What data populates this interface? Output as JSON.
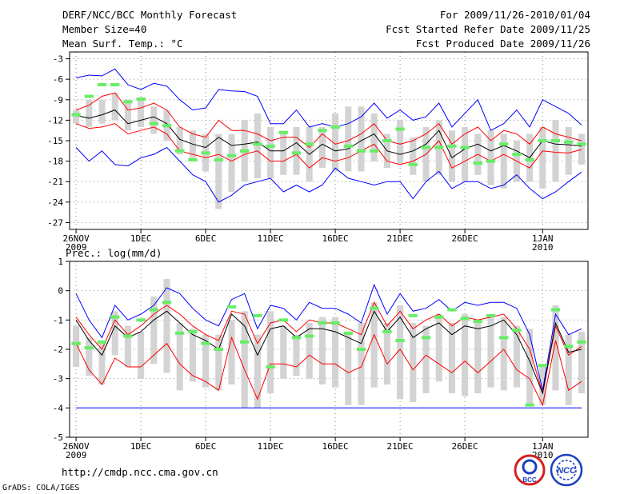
{
  "header": {
    "title": "DERF/NCC/BCC Monthly Forecast",
    "member_size": "Member Size=40",
    "variable": "Mean Surf. Temp.: °C",
    "period": "For 2009/11/26-2010/01/04",
    "started": "Fcst Started Refer Date 2009/11/25",
    "produced": "Fcst Produced Date 2009/11/26"
  },
  "footer": {
    "url": "http://cmdp.ncc.cma.gov.cn",
    "grads": "GrADS: COLA/IGES",
    "logo_bcc": "BCC",
    "logo_ncc": "NCC"
  },
  "colors": {
    "envelope": "#0000ff",
    "spread": "#ff0000",
    "mean": "#000000",
    "box": "#d3d3d3",
    "obs": "#66ee66"
  },
  "chart_data": [
    {
      "type": "box-line",
      "title": "Mean Surf. Temp.: °C",
      "ylim": [
        -28,
        -2
      ],
      "yticks": [
        -27,
        -24,
        -21,
        -18,
        -15,
        -12,
        -9,
        -6,
        -3
      ],
      "xlim": [
        0.5,
        40.5
      ],
      "xticks": [
        {
          "x": 1,
          "label": "26NOV",
          "sub": "2009"
        },
        {
          "x": 6,
          "label": "1DEC"
        },
        {
          "x": 11,
          "label": "6DEC"
        },
        {
          "x": 16,
          "label": "11DEC"
        },
        {
          "x": 21,
          "label": "16DEC"
        },
        {
          "x": 26,
          "label": "21DEC"
        },
        {
          "x": 31,
          "label": "26DEC"
        },
        {
          "x": 37,
          "label": "1JAN",
          "sub": "2010"
        }
      ],
      "x": [
        1,
        2,
        3,
        4,
        5,
        6,
        7,
        8,
        9,
        10,
        11,
        12,
        13,
        14,
        15,
        16,
        17,
        18,
        19,
        20,
        21,
        22,
        23,
        24,
        25,
        26,
        27,
        28,
        29,
        30,
        31,
        32,
        33,
        34,
        35,
        36,
        37,
        38,
        39,
        40
      ],
      "series": [
        {
          "name": "max",
          "values": [
            -5.8,
            -5.4,
            -5.5,
            -4.5,
            -6.8,
            -7.5,
            -6.6,
            -7,
            -9,
            -10.5,
            -10.2,
            -7.5,
            -7.7,
            -7.8,
            -8.5,
            -12.5,
            -12.5,
            -10.5,
            -13,
            -12.5,
            -13,
            -12.5,
            -11.5,
            -9.5,
            -11.7,
            -10.5,
            -12,
            -11.5,
            -9.5,
            -13,
            -11,
            -9,
            -13.5,
            -12.5,
            -10.5,
            -13,
            -9,
            -10,
            -11,
            -12.7
          ]
        },
        {
          "name": "upper",
          "values": [
            -10.5,
            -9.8,
            -8.5,
            -8,
            -10.5,
            -10.2,
            -9.5,
            -10.5,
            -13,
            -14,
            -14.5,
            -12,
            -13.5,
            -13.5,
            -14,
            -15,
            -14.5,
            -14.5,
            -16,
            -14,
            -15.5,
            -15,
            -14,
            -12.5,
            -15,
            -15.5,
            -15,
            -14,
            -12.5,
            -15.5,
            -14,
            -13,
            -15,
            -13.5,
            -14,
            -15.5,
            -13,
            -14,
            -14.5,
            -15
          ]
        },
        {
          "name": "mean",
          "values": [
            -11.3,
            -11.7,
            -11.2,
            -10.5,
            -12.5,
            -12,
            -11.5,
            -12.5,
            -14.8,
            -15.5,
            -16,
            -14.5,
            -15.7,
            -15.5,
            -15.2,
            -16.5,
            -16.5,
            -15.3,
            -17,
            -15.5,
            -16.5,
            -16.2,
            -15,
            -14,
            -16.5,
            -17,
            -16.5,
            -15.5,
            -13.5,
            -17.5,
            -16.2,
            -15.5,
            -16.5,
            -15.7,
            -16.5,
            -17.5,
            -15,
            -15.5,
            -15.6,
            -15.8
          ]
        },
        {
          "name": "lower",
          "values": [
            -12.5,
            -13.2,
            -13,
            -12.5,
            -14,
            -13.5,
            -13,
            -14,
            -16.5,
            -17,
            -17.5,
            -17,
            -18,
            -17,
            -16.5,
            -18,
            -18,
            -17,
            -19,
            -17.5,
            -18,
            -17.5,
            -16.5,
            -15.5,
            -18,
            -18.5,
            -18,
            -17,
            -15,
            -19,
            -18,
            -17,
            -18,
            -17,
            -18,
            -19,
            -16.5,
            -16.7,
            -16.8,
            -16.3
          ]
        },
        {
          "name": "min",
          "values": [
            -16,
            -18,
            -16.5,
            -18.5,
            -18.7,
            -17.5,
            -17,
            -16,
            -18,
            -20,
            -21,
            -24,
            -23,
            -21.5,
            -21,
            -20.5,
            -22.5,
            -21.5,
            -22.5,
            -21.5,
            -19,
            -20.5,
            -21,
            -21.5,
            -21,
            -21,
            -23.5,
            -21,
            -19.5,
            -22,
            -21,
            -21,
            -22,
            -21.5,
            -20,
            -22,
            -23.5,
            -22.5,
            -21,
            -19.6
          ]
        }
      ],
      "boxes": [
        [
          -12.5,
          -10.5
        ],
        [
          -13,
          -9
        ],
        [
          -12.5,
          -9
        ],
        [
          -12,
          -8
        ],
        [
          -13.5,
          -9
        ],
        [
          -13,
          -9
        ],
        [
          -14,
          -10
        ],
        [
          -15,
          -10.5
        ],
        [
          -17,
          -13
        ],
        [
          -18,
          -13.5
        ],
        [
          -19.5,
          -14
        ],
        [
          -25,
          -14
        ],
        [
          -22.5,
          -14
        ],
        [
          -21,
          -12
        ],
        [
          -20.5,
          -11
        ],
        [
          -20.5,
          -13
        ],
        [
          -20,
          -14
        ],
        [
          -20,
          -13
        ],
        [
          -21,
          -13
        ],
        [
          -19,
          -13
        ],
        [
          -19.5,
          -11
        ],
        [
          -19.5,
          -10
        ],
        [
          -19.5,
          -10
        ],
        [
          -18,
          -11
        ],
        [
          -19,
          -14
        ],
        [
          -18.5,
          -12
        ],
        [
          -20,
          -14.5
        ],
        [
          -21,
          -13
        ],
        [
          -20,
          -12
        ],
        [
          -21,
          -13.5
        ],
        [
          -21,
          -13
        ],
        [
          -20,
          -14
        ],
        [
          -21.5,
          -13.5
        ],
        [
          -22,
          -14
        ],
        [
          -21,
          -15
        ],
        [
          -21,
          -14
        ],
        [
          -22,
          -13
        ],
        [
          -21,
          -12
        ],
        [
          -20,
          -13
        ],
        [
          -18.5,
          -14
        ]
      ],
      "observed": [
        -11.2,
        -8.5,
        -6.8,
        -6.8,
        -9.3,
        -8.9,
        -12.5,
        -12.8,
        -16.5,
        -17.8,
        -16.8,
        -17.8,
        -17.2,
        -16.5,
        -15.5,
        -15.8,
        -13.8,
        -16.8,
        -15.5,
        -13.5,
        -13,
        -15.8,
        -16.5,
        -16.5,
        -15,
        -13.3,
        -18.5,
        -16,
        -16,
        -15.8,
        -16,
        -18.3,
        -18,
        -15.5,
        -17,
        -17.8,
        -15,
        -15,
        -15.2,
        -15.5
      ]
    },
    {
      "type": "box-line",
      "title": "Prec.: log(mm/d)",
      "ylim": [
        -5,
        1
      ],
      "yticks": [
        -5,
        -4,
        -3,
        -2,
        -1,
        0,
        1
      ],
      "xlim": [
        0.5,
        40.5
      ],
      "xticks": [
        {
          "x": 1,
          "label": "26NOV",
          "sub": "2009"
        },
        {
          "x": 6,
          "label": "1DEC"
        },
        {
          "x": 11,
          "label": "6DEC"
        },
        {
          "x": 16,
          "label": "11DEC"
        },
        {
          "x": 21,
          "label": "16DEC"
        },
        {
          "x": 26,
          "label": "21DEC"
        },
        {
          "x": 31,
          "label": "26DEC"
        },
        {
          "x": 37,
          "label": "1JAN",
          "sub": "2010"
        }
      ],
      "x": [
        1,
        2,
        3,
        4,
        5,
        6,
        7,
        8,
        9,
        10,
        11,
        12,
        13,
        14,
        15,
        16,
        17,
        18,
        19,
        20,
        21,
        22,
        23,
        24,
        25,
        26,
        27,
        28,
        29,
        30,
        31,
        32,
        33,
        34,
        35,
        36,
        37,
        38,
        39,
        40
      ],
      "series": [
        {
          "name": "max",
          "values": [
            -0.1,
            -1,
            -1.6,
            -0.5,
            -1,
            -0.8,
            -0.5,
            0.1,
            -0.1,
            -0.6,
            -1,
            -1.2,
            -0.3,
            -0.1,
            -1.3,
            -0.5,
            -0.6,
            -1,
            -0.4,
            -0.6,
            -0.6,
            -0.8,
            -1.1,
            0.2,
            -0.8,
            -0.1,
            -0.7,
            -0.6,
            -0.3,
            -0.7,
            -0.4,
            -0.5,
            -0.4,
            -0.4,
            -0.6,
            -1.5,
            -3.4,
            -0.8,
            -1.5,
            -1.3
          ]
        },
        {
          "name": "upper",
          "values": [
            -0.9,
            -1.5,
            -2,
            -1,
            -1.5,
            -1.2,
            -0.8,
            -0.5,
            -0.8,
            -1.2,
            -1.5,
            -1.7,
            -0.7,
            -0.8,
            -1.8,
            -1.1,
            -1,
            -1.4,
            -1,
            -1.1,
            -1.1,
            -1.3,
            -1.5,
            -0.4,
            -1.2,
            -0.7,
            -1.3,
            -1,
            -0.8,
            -1.2,
            -0.9,
            -1,
            -0.9,
            -0.8,
            -1.3,
            -2,
            -3.5,
            -1.2,
            -2.2,
            -1.9
          ]
        },
        {
          "name": "mean",
          "values": [
            -1,
            -1.7,
            -2.2,
            -1.2,
            -1.6,
            -1.4,
            -1,
            -0.7,
            -1.1,
            -1.5,
            -1.7,
            -2,
            -0.8,
            -1.2,
            -2.2,
            -1.3,
            -1.2,
            -1.6,
            -1.3,
            -1.3,
            -1.4,
            -1.6,
            -1.8,
            -0.7,
            -1.4,
            -0.9,
            -1.6,
            -1.3,
            -1.1,
            -1.5,
            -1.2,
            -1.3,
            -1.2,
            -1,
            -1.5,
            -2.4,
            -3.5,
            -1.1,
            -2.1,
            -2
          ]
        },
        {
          "name": "lower",
          "values": [
            -1.8,
            -2.7,
            -3.2,
            -2.3,
            -2.6,
            -2.6,
            -2.2,
            -1.8,
            -2.5,
            -2.9,
            -3.1,
            -3.4,
            -1.6,
            -2.7,
            -3.7,
            -2.5,
            -2.5,
            -2.6,
            -2.2,
            -2.5,
            -2.5,
            -2.8,
            -2.6,
            -1.5,
            -2.5,
            -2,
            -2.7,
            -2.2,
            -2.5,
            -2.8,
            -2.4,
            -2.8,
            -2.4,
            -2,
            -2.7,
            -3,
            -3.9,
            -1.7,
            -3.4,
            -3.1
          ]
        },
        {
          "name": "min",
          "values": [
            -4,
            -4,
            -4,
            -4,
            -4,
            -4,
            -4,
            -4,
            -4,
            -4,
            -4,
            -4,
            -4,
            -4,
            -4,
            -4,
            -4,
            -4,
            -4,
            -4,
            -4,
            -4,
            -4,
            -4,
            -4,
            -4,
            -4,
            -4,
            -4,
            -4,
            -4,
            -4,
            -4,
            -4,
            -4,
            -4,
            -4,
            -4,
            -4,
            -4
          ]
        }
      ],
      "boxes": [
        [
          -2.6,
          -1.2
        ],
        [
          -2.9,
          -1.6
        ],
        [
          -3.2,
          -1.8
        ],
        [
          -2.2,
          -0.7
        ],
        [
          -2.6,
          -1.2
        ],
        [
          -3,
          -1.4
        ],
        [
          -2.5,
          -0.2
        ],
        [
          -2.8,
          0.4
        ],
        [
          -3.4,
          -1.1
        ],
        [
          -3.1,
          -1.3
        ],
        [
          -3.3,
          -1.5
        ],
        [
          -3.4,
          -1.5
        ],
        [
          -3.2,
          -1
        ],
        [
          -4,
          -0.7
        ],
        [
          -4,
          -1.5
        ],
        [
          -3.5,
          -0.7
        ],
        [
          -3,
          -1.2
        ],
        [
          -2.9,
          -1.5
        ],
        [
          -3,
          -1.1
        ],
        [
          -3.2,
          -0.9
        ],
        [
          -3.3,
          -0.9
        ],
        [
          -3.9,
          -1.4
        ],
        [
          -3.9,
          -1.1
        ],
        [
          -3.3,
          -0.4
        ],
        [
          -3.2,
          -1.1
        ],
        [
          -3.7,
          -0.5
        ],
        [
          -3.8,
          -1.1
        ],
        [
          -3.5,
          -1.2
        ],
        [
          -3.1,
          -0.8
        ],
        [
          -3.5,
          -1.1
        ],
        [
          -3.6,
          -0.8
        ],
        [
          -3.5,
          -1
        ],
        [
          -3.3,
          -0.8
        ],
        [
          -3.4,
          -0.9
        ],
        [
          -3.3,
          -1.2
        ],
        [
          -3.9,
          -1.3
        ],
        [
          -3.9,
          -2.5
        ],
        [
          -3.4,
          -0.5
        ],
        [
          -3.9,
          -1.5
        ],
        [
          -3.5,
          -1.4
        ]
      ],
      "observed": [
        -1.8,
        -1.95,
        -1.75,
        -0.9,
        -1.55,
        -1,
        -0.65,
        -0.4,
        -1.45,
        -1.4,
        -1.8,
        -2,
        -0.55,
        -1.75,
        -0.85,
        -2.6,
        -1,
        -1.6,
        -1.55,
        -1.1,
        -1.1,
        -1.45,
        -2,
        -0.6,
        -1.4,
        -1.7,
        -0.85,
        -1.6,
        -0.9,
        -0.65,
        -0.95,
        -1.05,
        -0.85,
        -1.6,
        -1.35,
        -3.9,
        -2.55,
        -0.65,
        -1.9,
        -1.75
      ]
    }
  ]
}
